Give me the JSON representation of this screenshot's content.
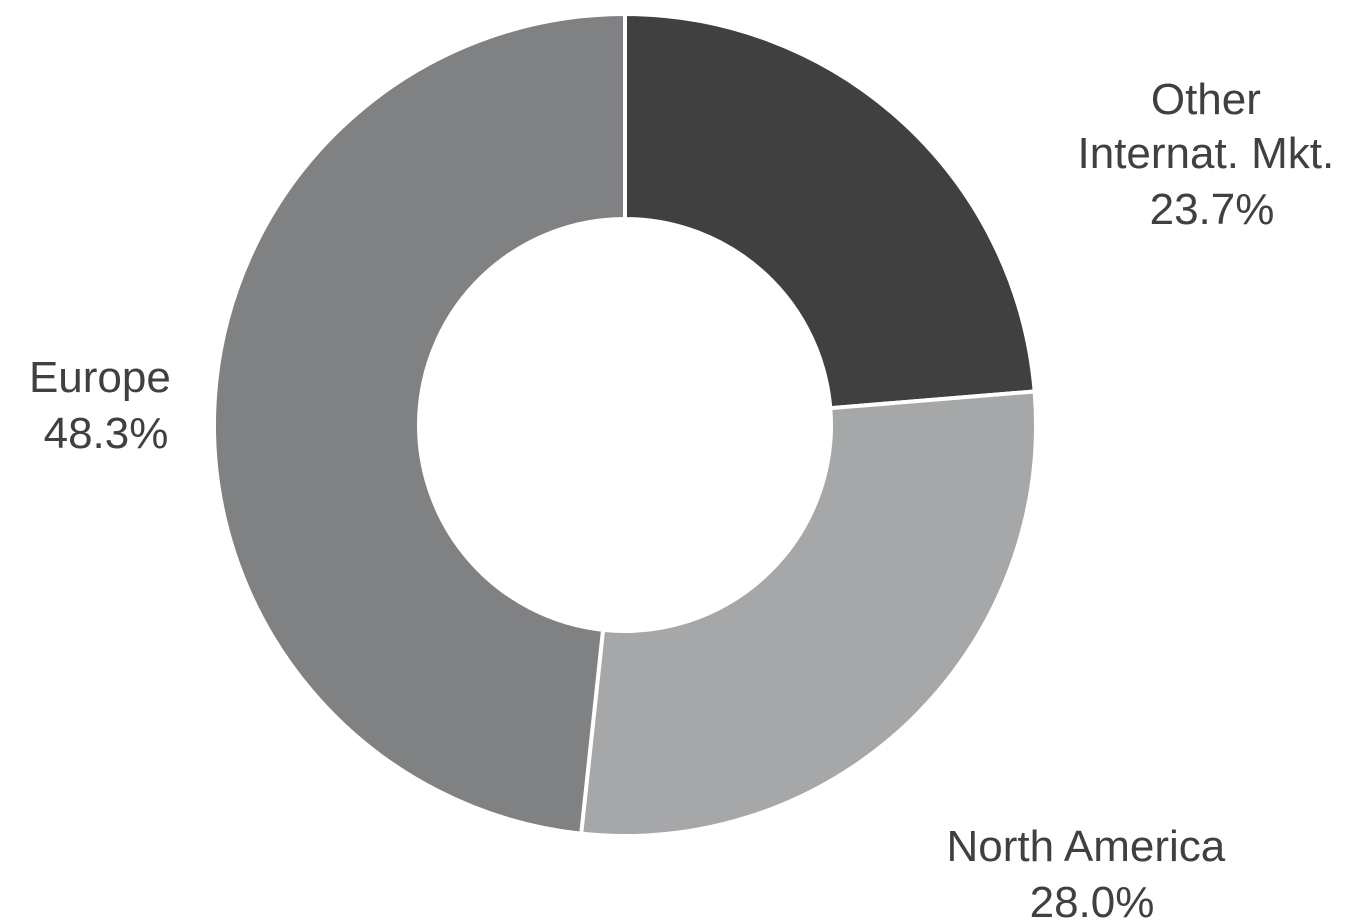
{
  "chart_data": {
    "type": "pie",
    "donut": true,
    "categories": [
      "Other Internat. Mkt.",
      "North America",
      "Europe"
    ],
    "values": [
      23.7,
      28.0,
      48.3
    ],
    "unit": "%",
    "colors": [
      "#404040",
      "#a6a7a9",
      "#808183"
    ],
    "slices": [
      {
        "label_lines": [
          "Other",
          "Internat. Mkt."
        ],
        "value_label": "23.7%",
        "value": 23.7,
        "color": "#404040"
      },
      {
        "label_lines": [
          "North America"
        ],
        "value_label": "28.0%",
        "value": 28.0,
        "color": "#a6a7a9"
      },
      {
        "label_lines": [
          "Europe"
        ],
        "value_label": "48.3%",
        "value": 48.3,
        "color": "#808183"
      }
    ],
    "start_angle_deg": 0,
    "direction": "clockwise",
    "legend": "none"
  }
}
